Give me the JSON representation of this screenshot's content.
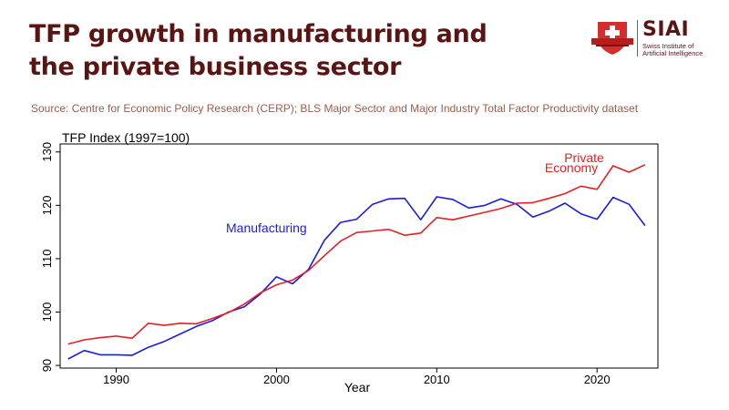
{
  "header": {
    "title": "TFP growth in manufacturing and the private business sector",
    "source": "Source: Centre for Economic Policy Research (CERP); BLS Major Sector and Major Industry Total Factor Productivity dataset"
  },
  "logo": {
    "name": "SIAI",
    "subtitle_line1": "Swiss Institute of",
    "subtitle_line2": "Artificial Intelligence",
    "color": "#5a1414",
    "accent": "#d32f2f"
  },
  "chart_data": {
    "type": "line",
    "title": "TFP Index (1997=100)",
    "xlabel": "Year",
    "ylabel": "",
    "xlim": [
      1986.5,
      2023.8
    ],
    "ylim": [
      89.5,
      131.5
    ],
    "x_ticks": [
      1990,
      2000,
      2010,
      2020
    ],
    "y_ticks": [
      90,
      100,
      110,
      120,
      130
    ],
    "series": [
      {
        "name": "Manufacturing",
        "label": "Manufacturing",
        "color": "#1a1ae6",
        "x": [
          1987,
          1988,
          1989,
          1990,
          1991,
          1992,
          1993,
          1994,
          1995,
          1996,
          1997,
          1998,
          1999,
          2000,
          2001,
          2002,
          2003,
          2004,
          2005,
          2006,
          2007,
          2008,
          2009,
          2010,
          2011,
          2012,
          2013,
          2014,
          2015,
          2016,
          2017,
          2018,
          2019,
          2020,
          2021,
          2022,
          2023
        ],
        "values": [
          91.2,
          92.8,
          92.0,
          92.0,
          91.9,
          93.4,
          94.5,
          95.9,
          97.3,
          98.4,
          100.0,
          101.0,
          103.4,
          106.6,
          105.3,
          108.0,
          113.5,
          116.8,
          117.4,
          120.2,
          121.2,
          121.3,
          117.3,
          121.6,
          121.1,
          119.5,
          120.0,
          121.2,
          120.2,
          117.8,
          118.9,
          120.4,
          118.4,
          117.4,
          121.5,
          120.2,
          116.2
        ]
      },
      {
        "name": "Private Economy",
        "label_line1": "Private",
        "label_line2": "Economy",
        "color": "#e62020",
        "x": [
          1987,
          1988,
          1989,
          1990,
          1991,
          1992,
          1993,
          1994,
          1995,
          1996,
          1997,
          1998,
          1999,
          2000,
          2001,
          2002,
          2003,
          2004,
          2005,
          2006,
          2007,
          2008,
          2009,
          2010,
          2011,
          2012,
          2013,
          2014,
          2015,
          2016,
          2017,
          2018,
          2019,
          2020,
          2021,
          2022,
          2023
        ],
        "values": [
          94.0,
          94.8,
          95.2,
          95.5,
          95.1,
          97.9,
          97.5,
          97.9,
          97.8,
          98.8,
          99.9,
          101.5,
          103.6,
          105.1,
          106.0,
          107.8,
          110.6,
          113.3,
          114.9,
          115.2,
          115.5,
          114.4,
          114.8,
          117.7,
          117.3,
          118.0,
          118.7,
          119.4,
          120.4,
          120.5,
          121.3,
          122.2,
          123.6,
          123.0,
          127.4,
          126.2,
          127.6
        ]
      }
    ]
  }
}
